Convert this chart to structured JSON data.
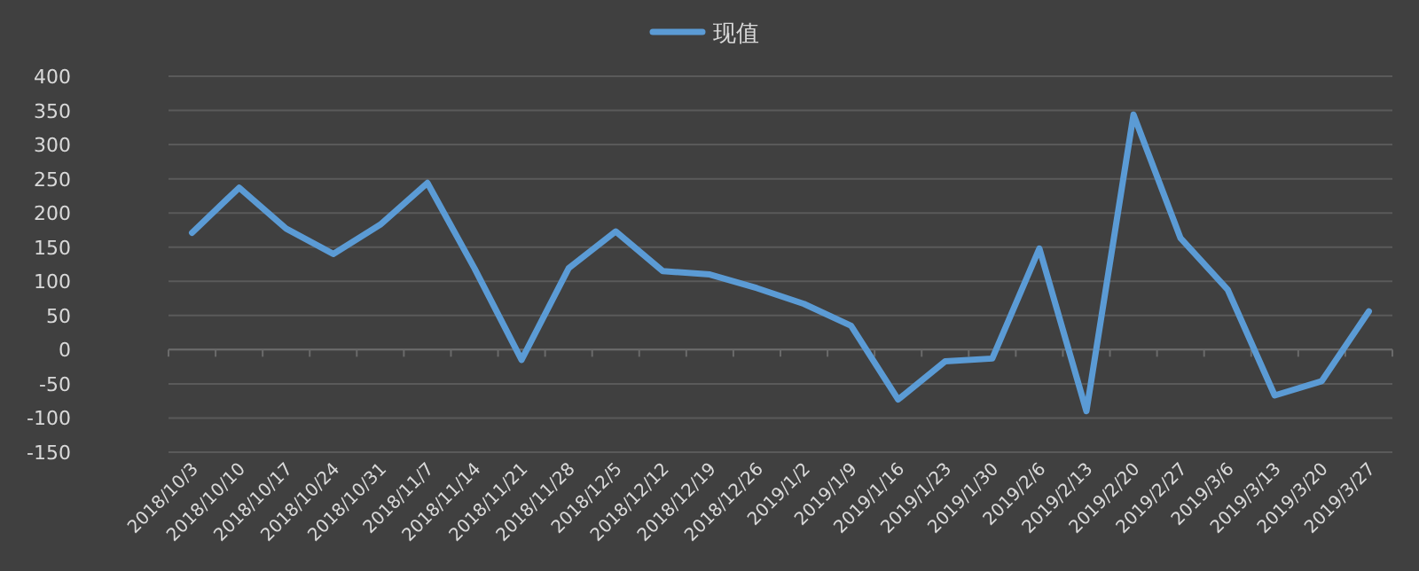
{
  "chart_data": {
    "type": "line",
    "categories": [
      "2018/10/3",
      "2018/10/10",
      "2018/10/17",
      "2018/10/24",
      "2018/10/31",
      "2018/11/7",
      "2018/11/14",
      "2018/11/21",
      "2018/11/28",
      "2018/12/5",
      "2018/12/12",
      "2018/12/19",
      "2018/12/26",
      "2019/1/2",
      "2019/1/9",
      "2019/1/16",
      "2019/1/23",
      "2019/1/30",
      "2019/2/6",
      "2019/2/13",
      "2019/2/20",
      "2019/2/27",
      "2019/3/6",
      "2019/3/13",
      "2019/3/20",
      "2019/3/27"
    ],
    "series": [
      {
        "name": "现值",
        "color": "#5b9bd5",
        "values": [
          171,
          237,
          177,
          140,
          183,
          244,
          119,
          -15,
          119,
          173,
          115,
          110,
          90,
          67,
          35,
          -73,
          -17,
          -13,
          148,
          -90,
          344,
          163,
          88,
          -67,
          -46,
          56
        ]
      }
    ],
    "ylim": [
      -150,
      400
    ],
    "yticks": [
      -150,
      -100,
      -50,
      0,
      50,
      100,
      150,
      200,
      250,
      300,
      350,
      400
    ],
    "grid": "y",
    "legend": "top"
  }
}
